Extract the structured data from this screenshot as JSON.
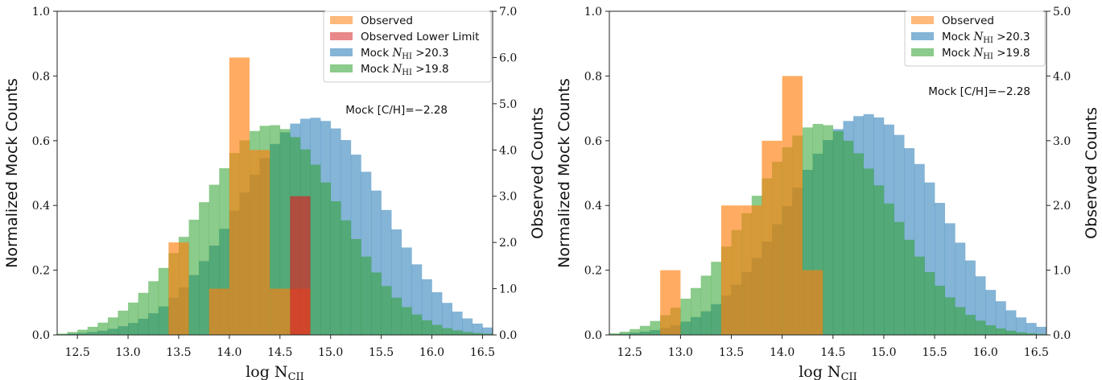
{
  "colors": {
    "observed": "#ff7f0e",
    "lower_limit": "#d62728",
    "mock_20_3": "#1f77b4",
    "mock_19_8": "#2ca02c"
  },
  "chart_data": [
    {
      "type": "bar",
      "panel": "left",
      "title": "",
      "xlabel": "log N_CII",
      "xlabel_main": "log N",
      "xlabel_sub": "CII",
      "ylabel": "Normalized Mock Counts",
      "ylabel_right": "Observed Counts",
      "xlim": [
        12.3,
        16.6
      ],
      "ylim": [
        0,
        1.0
      ],
      "ylim_right": [
        0,
        7.0
      ],
      "xticks": [
        "12.5",
        "13.0",
        "13.5",
        "14.0",
        "14.5",
        "15.0",
        "15.5",
        "16.0",
        "16.5"
      ],
      "yticks": [
        "0.0",
        "0.2",
        "0.4",
        "0.6",
        "0.8",
        "1.0"
      ],
      "yticks_right": [
        "0.0",
        "1.0",
        "2.0",
        "3.0",
        "4.0",
        "5.0",
        "6.0",
        "7.0"
      ],
      "legend_position": "upper-right",
      "legend": [
        {
          "key": "observed",
          "text": "Observed"
        },
        {
          "key": "lower_limit",
          "text": "Observed Lower Limit"
        },
        {
          "key": "mock_20_3",
          "text": "Mock N_HI >20.3",
          "pre": "Mock ",
          "mid": "N",
          "sub": "HI",
          "post": " >20.3"
        },
        {
          "key": "mock_19_8",
          "text": "Mock N_HI >19.8",
          "pre": "Mock ",
          "mid": "N",
          "sub": "HI",
          "post": " >19.8"
        }
      ],
      "annotation": "Mock [C/H]=−2.28",
      "mock_bin_start": 12.3,
      "mock_bin_width": 0.1,
      "series": [
        {
          "name": "Mock N_HI >20.3",
          "key": "mock_20_3",
          "axis": "left",
          "values": [
            0.002,
            0.004,
            0.006,
            0.009,
            0.013,
            0.019,
            0.027,
            0.037,
            0.05,
            0.067,
            0.088,
            0.115,
            0.147,
            0.185,
            0.228,
            0.276,
            0.328,
            0.384,
            0.44,
            0.495,
            0.546,
            0.59,
            0.626,
            0.653,
            0.668,
            0.671,
            0.661,
            0.638,
            0.602,
            0.557,
            0.504,
            0.446,
            0.386,
            0.326,
            0.27,
            0.218,
            0.172,
            0.132,
            0.099,
            0.072,
            0.051,
            0.035,
            0.023
          ]
        },
        {
          "name": "Mock N_HI >19.8",
          "key": "mock_19_8",
          "axis": "left",
          "values": [
            0.004,
            0.009,
            0.016,
            0.025,
            0.038,
            0.054,
            0.075,
            0.1,
            0.13,
            0.166,
            0.207,
            0.253,
            0.303,
            0.356,
            0.41,
            0.464,
            0.515,
            0.562,
            0.601,
            0.63,
            0.646,
            0.648,
            0.636,
            0.611,
            0.573,
            0.526,
            0.471,
            0.413,
            0.354,
            0.296,
            0.242,
            0.193,
            0.151,
            0.115,
            0.086,
            0.063,
            0.045,
            0.031,
            0.021,
            0.014,
            0.009,
            0.006,
            0.004
          ]
        },
        {
          "name": "Observed",
          "key": "observed",
          "axis": "right",
          "bins": [
            [
              13.4,
              13.6,
              2.0
            ],
            [
              13.8,
              14.0,
              1.0
            ],
            [
              14.0,
              14.2,
              6.0
            ],
            [
              14.2,
              14.4,
              4.0
            ],
            [
              14.4,
              14.6,
              1.0
            ],
            [
              14.6,
              14.8,
              1.0
            ]
          ]
        },
        {
          "name": "Observed Lower Limit",
          "key": "lower_limit",
          "axis": "right",
          "bins": [
            [
              14.6,
              14.8,
              3.0
            ]
          ]
        }
      ]
    },
    {
      "type": "bar",
      "panel": "right",
      "title": "",
      "xlabel": "log N_CII",
      "xlabel_main": "log N",
      "xlabel_sub": "CII",
      "ylabel": "Normalized Mock Counts",
      "ylabel_right": "Observed Counts",
      "xlim": [
        12.3,
        16.6
      ],
      "ylim": [
        0,
        1.0
      ],
      "ylim_right": [
        0,
        5.0
      ],
      "xticks": [
        "12.5",
        "13.0",
        "13.5",
        "14.0",
        "14.5",
        "15.0",
        "15.5",
        "16.0",
        "16.5"
      ],
      "yticks": [
        "0.0",
        "0.2",
        "0.4",
        "0.6",
        "0.8",
        "1.0"
      ],
      "yticks_right": [
        "0.0",
        "1.0",
        "2.0",
        "3.0",
        "4.0",
        "5.0"
      ],
      "legend_position": "upper-right",
      "legend": [
        {
          "key": "observed",
          "text": "Observed"
        },
        {
          "key": "mock_20_3",
          "text": "Mock N_HI >20.3",
          "pre": "Mock ",
          "mid": "N",
          "sub": "HI",
          "post": " >20.3"
        },
        {
          "key": "mock_19_8",
          "text": "Mock N_HI >19.8",
          "pre": "Mock ",
          "mid": "N",
          "sub": "HI",
          "post": " >19.8"
        }
      ],
      "annotation": "Mock [C/H]=−2.28",
      "mock_bin_start": 12.3,
      "mock_bin_width": 0.1,
      "series": [
        {
          "name": "Mock N_HI >20.3",
          "key": "mock_20_3",
          "axis": "left",
          "values": [
            0.002,
            0.004,
            0.007,
            0.01,
            0.015,
            0.022,
            0.03,
            0.041,
            0.055,
            0.073,
            0.095,
            0.122,
            0.155,
            0.194,
            0.238,
            0.288,
            0.342,
            0.398,
            0.455,
            0.51,
            0.56,
            0.602,
            0.636,
            0.661,
            0.676,
            0.682,
            0.672,
            0.65,
            0.618,
            0.577,
            0.528,
            0.471,
            0.408,
            0.345,
            0.285,
            0.23,
            0.181,
            0.139,
            0.104,
            0.076,
            0.054,
            0.037,
            0.025
          ]
        },
        {
          "name": "Mock N_HI >19.8",
          "key": "mock_19_8",
          "axis": "left",
          "values": [
            0.005,
            0.01,
            0.018,
            0.028,
            0.043,
            0.061,
            0.084,
            0.112,
            0.145,
            0.183,
            0.226,
            0.273,
            0.324,
            0.376,
            0.43,
            0.484,
            0.535,
            0.58,
            0.616,
            0.641,
            0.652,
            0.648,
            0.63,
            0.6,
            0.561,
            0.514,
            0.462,
            0.406,
            0.349,
            0.294,
            0.242,
            0.194,
            0.152,
            0.116,
            0.086,
            0.062,
            0.044,
            0.03,
            0.02,
            0.013,
            0.008,
            0.005,
            0.003
          ]
        },
        {
          "name": "Observed",
          "key": "observed",
          "axis": "right",
          "bins": [
            [
              12.8,
              13.0,
              1.0
            ],
            [
              13.4,
              13.6,
              2.0
            ],
            [
              13.6,
              13.8,
              2.0
            ],
            [
              13.8,
              14.0,
              3.0
            ],
            [
              14.0,
              14.2,
              4.0
            ],
            [
              14.2,
              14.4,
              1.0
            ]
          ]
        }
      ]
    }
  ]
}
